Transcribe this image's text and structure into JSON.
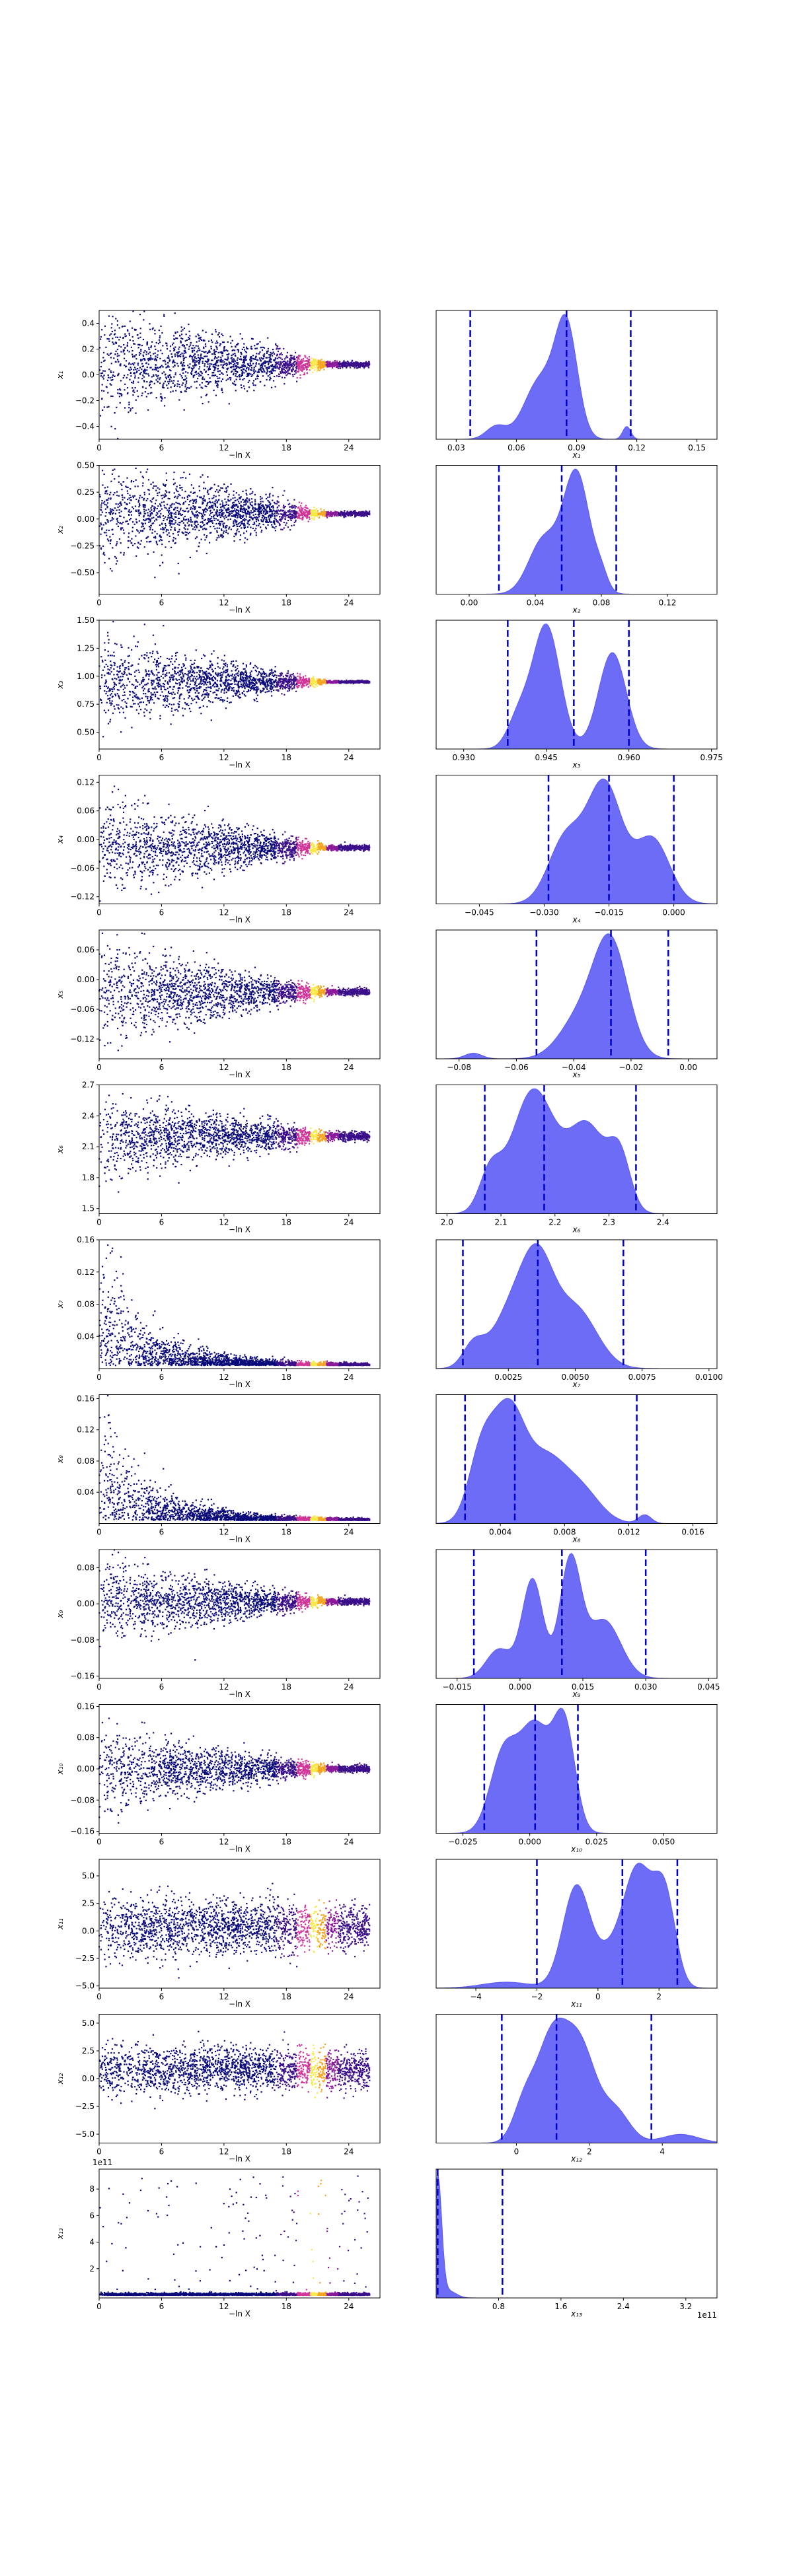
{
  "chart_data": {
    "type": "scatter",
    "trace_xlabel": "−ln X",
    "trace_xlim": [
      0,
      27
    ],
    "trace_xticks": [
      0,
      6,
      12,
      18,
      24
    ],
    "colormap": [
      "#0a0a7a",
      "#3b0f8a",
      "#8a1a9a",
      "#d0359a",
      "#f5a623",
      "#f7e84a"
    ],
    "hist_fill": "#5c5cf5",
    "quantile_line_color": "#0000cc",
    "rows": [
      {
        "label": "x₁",
        "trace_ylim": [
          -0.5,
          0.5
        ],
        "trace_yticks": [
          -0.4,
          -0.2,
          0.0,
          0.2,
          0.4
        ],
        "trace_center": 0.08,
        "trace_spread0": 0.4,
        "trace_spread_end": 0.02,
        "hist_xlim": [
          0.02,
          0.16
        ],
        "hist_xticks": [
          0.03,
          0.06,
          0.09,
          0.12,
          0.15
        ],
        "quantiles": [
          0.037,
          0.085,
          0.117
        ],
        "hist_peaks": [
          [
            0.085,
            1.0,
            0.0055
          ],
          [
            0.072,
            0.55,
            0.008
          ],
          [
            0.05,
            0.12,
            0.005
          ],
          [
            0.115,
            0.12,
            0.002
          ]
        ]
      },
      {
        "label": "x₂",
        "trace_ylim": [
          -0.7,
          0.5
        ],
        "trace_yticks": [
          -0.5,
          -0.25,
          0.0,
          0.25,
          0.5
        ],
        "trace_center": 0.05,
        "trace_spread0": 0.45,
        "trace_spread_end": 0.02,
        "hist_xlim": [
          -0.02,
          0.15
        ],
        "hist_xticks": [
          0.0,
          0.04,
          0.08,
          0.12
        ],
        "quantiles": [
          0.018,
          0.056,
          0.089
        ],
        "hist_peaks": [
          [
            0.065,
            1.0,
            0.008
          ],
          [
            0.045,
            0.45,
            0.009
          ],
          [
            0.08,
            0.12,
            0.004
          ]
        ]
      },
      {
        "label": "x₃",
        "trace_ylim": [
          0.35,
          1.5
        ],
        "trace_yticks": [
          0.5,
          0.75,
          1.0,
          1.25,
          1.5
        ],
        "trace_center": 0.95,
        "trace_spread0": 0.35,
        "trace_spread_end": 0.01,
        "hist_xlim": [
          0.925,
          0.976
        ],
        "hist_xticks": [
          0.93,
          0.945,
          0.96,
          0.975
        ],
        "quantiles": [
          0.938,
          0.95,
          0.96
        ],
        "hist_peaks": [
          [
            0.945,
            1.0,
            0.0025
          ],
          [
            0.957,
            0.78,
            0.0025
          ],
          [
            0.94,
            0.25,
            0.002
          ]
        ]
      },
      {
        "label": "x₄",
        "trace_ylim": [
          -0.135,
          0.135
        ],
        "trace_yticks": [
          -0.12,
          -0.06,
          0.0,
          0.06,
          0.12
        ],
        "trace_center": -0.017,
        "trace_spread0": 0.09,
        "trace_spread_end": 0.005,
        "hist_xlim": [
          -0.055,
          0.01
        ],
        "hist_xticks": [
          -0.045,
          -0.03,
          -0.015,
          0.0
        ],
        "quantiles": [
          -0.029,
          -0.015,
          0.0
        ],
        "hist_peaks": [
          [
            -0.016,
            1.0,
            0.004
          ],
          [
            -0.025,
            0.55,
            0.004
          ],
          [
            -0.005,
            0.55,
            0.004
          ]
        ]
      },
      {
        "label": "x₅",
        "trace_ylim": [
          -0.16,
          0.1
        ],
        "trace_yticks": [
          -0.12,
          -0.06,
          0.0,
          0.06
        ],
        "trace_center": -0.025,
        "trace_spread0": 0.09,
        "trace_spread_end": 0.006,
        "hist_xlim": [
          -0.088,
          0.01
        ],
        "hist_xticks": [
          -0.08,
          -0.06,
          -0.04,
          -0.02,
          0.0
        ],
        "quantiles": [
          -0.053,
          -0.027,
          -0.007
        ],
        "hist_peaks": [
          [
            -0.027,
            1.0,
            0.006
          ],
          [
            -0.038,
            0.35,
            0.007
          ],
          [
            -0.075,
            0.05,
            0.003
          ]
        ]
      },
      {
        "label": "x₆",
        "trace_ylim": [
          1.45,
          2.7
        ],
        "trace_yticks": [
          1.5,
          1.8,
          2.1,
          2.4,
          2.7
        ],
        "trace_center": 2.2,
        "trace_spread0": 0.35,
        "trace_spread_end": 0.04,
        "hist_xlim": [
          1.98,
          2.5
        ],
        "hist_xticks": [
          2.0,
          2.1,
          2.2,
          2.3,
          2.4
        ],
        "quantiles": [
          2.07,
          2.18,
          2.35
        ],
        "hist_peaks": [
          [
            2.16,
            1.0,
            0.04
          ],
          [
            2.26,
            0.7,
            0.035
          ],
          [
            2.32,
            0.42,
            0.02
          ],
          [
            2.08,
            0.3,
            0.02
          ]
        ]
      },
      {
        "label": "x₇",
        "trace_ylim": [
          0,
          0.16
        ],
        "trace_yticks": [
          0.04,
          0.08,
          0.12,
          0.16
        ],
        "trace_center": 0.004,
        "trace_spread0": 0.06,
        "trace_spread_end": 0.001,
        "hist_xlim": [
          -0.0002,
          0.0103
        ],
        "hist_xticks": [
          0.0025,
          0.005,
          0.0075,
          0.01
        ],
        "quantiles": [
          0.0008,
          0.0036,
          0.0068
        ],
        "hist_peaks": [
          [
            0.0036,
            1.0,
            0.0006
          ],
          [
            0.0026,
            0.6,
            0.0007
          ],
          [
            0.005,
            0.65,
            0.0008
          ],
          [
            0.0012,
            0.25,
            0.0004
          ]
        ]
      },
      {
        "label": "x₈",
        "trace_ylim": [
          0,
          0.165
        ],
        "trace_yticks": [
          0.04,
          0.08,
          0.12,
          0.16
        ],
        "trace_center": 0.004,
        "trace_spread0": 0.06,
        "trace_spread_end": 0.001,
        "hist_xlim": [
          0.0,
          0.0175
        ],
        "hist_xticks": [
          0.004,
          0.008,
          0.012,
          0.016
        ],
        "quantiles": [
          0.0018,
          0.0049,
          0.0125
        ],
        "hist_peaks": [
          [
            0.0045,
            1.0,
            0.001
          ],
          [
            0.0028,
            0.6,
            0.0008
          ],
          [
            0.0068,
            0.55,
            0.0012
          ],
          [
            0.009,
            0.3,
            0.0012
          ],
          [
            0.013,
            0.08,
            0.0004
          ]
        ]
      },
      {
        "label": "x₉",
        "trace_ylim": [
          -0.165,
          0.12
        ],
        "trace_yticks": [
          -0.16,
          -0.08,
          0.0,
          0.08
        ],
        "trace_center": 0.005,
        "trace_spread0": 0.08,
        "trace_spread_end": 0.006,
        "hist_xlim": [
          -0.02,
          0.047
        ],
        "hist_xticks": [
          -0.015,
          0.0,
          0.015,
          0.03,
          0.045
        ],
        "quantiles": [
          -0.011,
          0.01,
          0.03
        ],
        "hist_peaks": [
          [
            0.012,
            1.0,
            0.0025
          ],
          [
            0.003,
            0.85,
            0.0025
          ],
          [
            0.02,
            0.5,
            0.004
          ],
          [
            -0.005,
            0.25,
            0.003
          ]
        ]
      },
      {
        "label": "x₁₀",
        "trace_ylim": [
          -0.165,
          0.165
        ],
        "trace_yticks": [
          -0.16,
          -0.08,
          0.0,
          0.08,
          0.16
        ],
        "trace_center": 0.0,
        "trace_spread0": 0.09,
        "trace_spread_end": 0.008,
        "hist_xlim": [
          -0.035,
          0.07
        ],
        "hist_xticks": [
          -0.025,
          0.0,
          0.025,
          0.05
        ],
        "quantiles": [
          -0.017,
          0.002,
          0.018
        ],
        "hist_peaks": [
          [
            0.002,
            1.0,
            0.006
          ],
          [
            0.013,
            0.95,
            0.004
          ],
          [
            -0.01,
            0.7,
            0.005
          ]
        ]
      },
      {
        "label": "x₁₁",
        "trace_ylim": [
          -5.2,
          6.5
        ],
        "trace_yticks": [
          -5.0,
          -2.5,
          0.0,
          2.5,
          5.0
        ],
        "trace_center": 0.3,
        "trace_spread0": 2.8,
        "trace_spread_end": 1.8,
        "hist_xlim": [
          -5.3,
          3.9
        ],
        "hist_xticks": [
          -4,
          -2,
          0,
          2
        ],
        "quantiles": [
          -2.0,
          0.8,
          2.6
        ],
        "hist_peaks": [
          [
            1.3,
            1.0,
            0.5
          ],
          [
            -0.7,
            0.85,
            0.45
          ],
          [
            2.2,
            0.7,
            0.35
          ],
          [
            0.3,
            0.2,
            0.4
          ],
          [
            -3,
            0.05,
            0.8
          ]
        ]
      },
      {
        "label": "x₁₂",
        "trace_ylim": [
          -5.8,
          5.8
        ],
        "trace_yticks": [
          -5.0,
          -2.5,
          0.0,
          2.5,
          5.0
        ],
        "trace_center": 0.8,
        "trace_spread0": 2.2,
        "trace_spread_end": 1.5,
        "hist_xlim": [
          -2.2,
          5.5
        ],
        "hist_xticks": [
          0,
          2,
          4
        ],
        "quantiles": [
          -0.4,
          1.1,
          3.7
        ],
        "hist_peaks": [
          [
            1.0,
            1.0,
            0.45
          ],
          [
            1.8,
            0.75,
            0.4
          ],
          [
            2.7,
            0.3,
            0.4
          ],
          [
            0.2,
            0.3,
            0.3
          ],
          [
            4.5,
            0.08,
            0.5
          ]
        ]
      },
      {
        "label": "x₁₃",
        "trace_ylim": [
          -0.2,
          9.5
        ],
        "trace_yticks": [
          2,
          4,
          6,
          8
        ],
        "trace_center": 0.0,
        "trace_spread0": 0.0,
        "trace_spread_end": 0.0,
        "trace_scale_label": "1e11",
        "hist_xlim": [
          0.0,
          3.6
        ],
        "hist_xticks": [
          0.8,
          1.6,
          2.4,
          3.2
        ],
        "quantiles": [
          0.02,
          0.85
        ],
        "hist_scale_label": "1e11",
        "hist_peaks": [
          [
            0.02,
            1.0,
            0.05
          ],
          [
            0.15,
            0.06,
            0.1
          ]
        ]
      }
    ]
  }
}
